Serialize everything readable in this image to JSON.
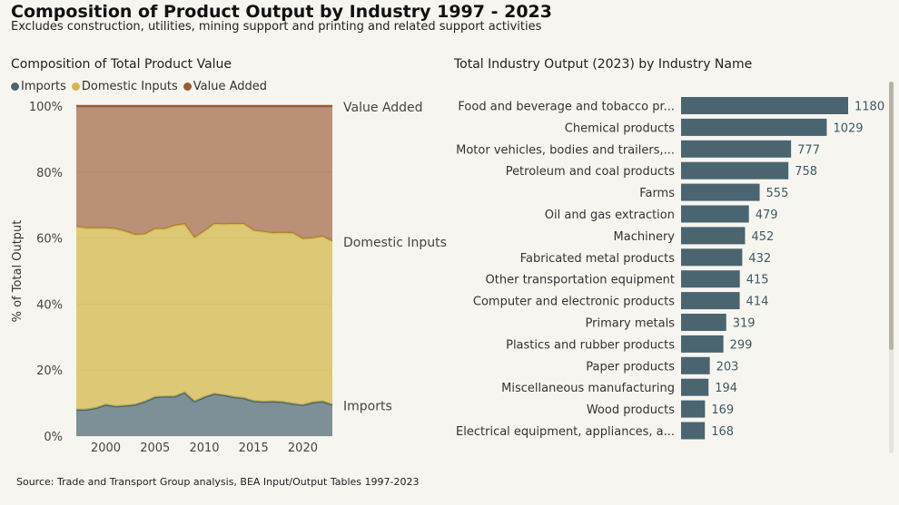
{
  "title": "Composition of Product Output by Industry 1997 - 2023",
  "subtitle": "Excludes construction, utilities, mining support and printing and related support activities",
  "source": "Source: Trade and Transport Group analysis, BEA Input/Output Tables 1997-2023",
  "colors": {
    "imports": "#4a6570",
    "domestic": "#d4b94c",
    "value_added": "#9a5a36",
    "bar": "#4a6570"
  },
  "chart_data": [
    {
      "type": "area",
      "stacked": true,
      "title": "Composition of Total Product Value",
      "ylabel": "% of Total Output",
      "xlabel": "",
      "ylim": [
        0,
        100
      ],
      "yticks": [
        "0%",
        "20%",
        "40%",
        "60%",
        "80%",
        "100%"
      ],
      "xticks": [
        2000,
        2005,
        2010,
        2015,
        2020
      ],
      "legend": [
        "Imports",
        "Domestic Inputs",
        "Value Added"
      ],
      "legend_position": "top-left",
      "end_labels": [
        "Value Added",
        "Domestic Inputs",
        "Imports"
      ],
      "x": [
        1997,
        1998,
        1999,
        2000,
        2001,
        2002,
        2003,
        2004,
        2005,
        2006,
        2007,
        2008,
        2009,
        2010,
        2011,
        2012,
        2013,
        2014,
        2015,
        2016,
        2017,
        2018,
        2019,
        2020,
        2021,
        2022,
        2023
      ],
      "series": [
        {
          "name": "Imports",
          "values": [
            8,
            8,
            8.5,
            9.5,
            9,
            9.2,
            9.5,
            10.5,
            11.8,
            12,
            12,
            13.2,
            10.5,
            11.8,
            12.8,
            12.4,
            11.8,
            11.5,
            10.6,
            10.4,
            10.5,
            10.3,
            9.8,
            9.4,
            10.2,
            10.5,
            9.5
          ]
        },
        {
          "name": "Domestic Inputs",
          "values": [
            55.5,
            55,
            54.5,
            53.5,
            53.8,
            52.8,
            51.5,
            50.7,
            51,
            50.8,
            51.8,
            51,
            49.6,
            50.3,
            51.5,
            51.8,
            52.5,
            52.8,
            51.7,
            51.5,
            51,
            51.3,
            51.7,
            50.4,
            49.8,
            50,
            49.5
          ]
        },
        {
          "name": "Value Added",
          "values": [
            36.5,
            37,
            37,
            37,
            37.2,
            38,
            39,
            38.8,
            37.2,
            37.2,
            36.2,
            35.8,
            39.9,
            37.9,
            35.7,
            35.8,
            35.7,
            35.7,
            37.7,
            38.1,
            38.5,
            38.4,
            38.5,
            40.2,
            40,
            39.5,
            41
          ]
        }
      ]
    },
    {
      "type": "bar",
      "orientation": "horizontal",
      "title": "Total Industry Output (2023) by Industry Name",
      "categories": [
        "Food and beverage and tobacco pr...",
        "Chemical products",
        "Motor vehicles, bodies and trailers,...",
        "Petroleum and coal products",
        "Farms",
        "Oil and gas extraction",
        "Machinery",
        "Fabricated metal products",
        "Other transportation equipment",
        "Computer and electronic products",
        "Primary metals",
        "Plastics and rubber products",
        "Paper products",
        "Miscellaneous manufacturing",
        "Wood products",
        "Electrical equipment, appliances, a..."
      ],
      "values": [
        1180,
        1029,
        777,
        758,
        555,
        479,
        452,
        432,
        415,
        414,
        319,
        299,
        203,
        194,
        169,
        168
      ]
    }
  ]
}
